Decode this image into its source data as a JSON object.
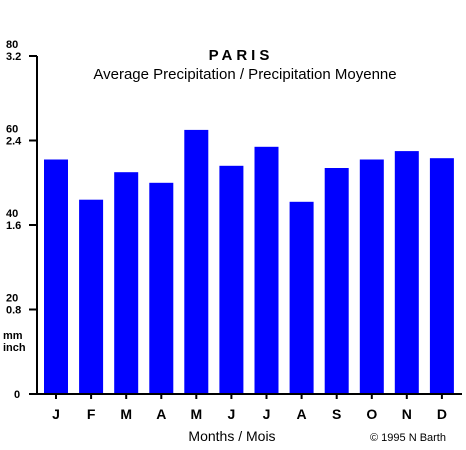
{
  "chart_data": {
    "type": "bar",
    "title": "PARIS",
    "subtitle": "Average Precipitation / Precipitation Moyenne",
    "xlabel": "Months / Mois",
    "credit": "© 1995 N Barth",
    "categories": [
      "J",
      "F",
      "M",
      "A",
      "M",
      "J",
      "J",
      "A",
      "S",
      "O",
      "N",
      "D"
    ],
    "series": [
      {
        "name": "",
        "color": "#0000ff",
        "values": [
          55.5,
          46,
          52.5,
          50,
          62.5,
          54,
          58.5,
          45.5,
          53.5,
          55.5,
          57.5,
          55.8
        ]
      }
    ],
    "ylim": [
      0,
      80
    ],
    "yticks_mm": [
      "0",
      "20",
      "40",
      "60",
      "80"
    ],
    "yticks_inch": [
      "0.8",
      "1.6",
      "2.4",
      "3.2"
    ],
    "unit_mm": "mm",
    "unit_inch": "inch",
    "bar_color": "#0000ff",
    "grid": false
  }
}
